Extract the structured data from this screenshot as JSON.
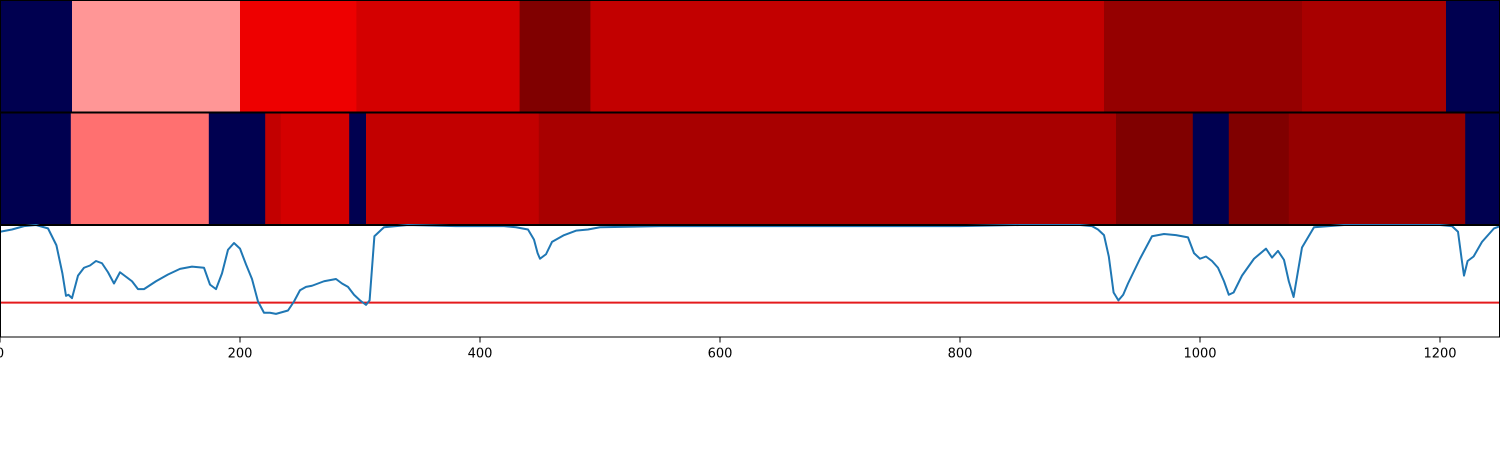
{
  "chart_data": {
    "type": "heatmap",
    "title": "",
    "xlabel": "",
    "ylabel": "",
    "xlim": [
      0,
      1250
    ],
    "grid": false,
    "x_ticks": [
      "0",
      "200",
      "400",
      "600",
      "800",
      "1000",
      "1200"
    ],
    "band_colors": {
      "background": "#000050",
      "palest": "#ff9696",
      "pale": "#ff7070",
      "bright": "#ee0000",
      "red": "#d40000",
      "mid_red": "#c20000",
      "deep_red": "#a80000",
      "darker_red": "#950000",
      "darkest_red": "#800000"
    },
    "rows": [
      {
        "segments": [
          {
            "start": 0,
            "end": 60,
            "color": "#000050"
          },
          {
            "start": 60,
            "end": 200,
            "color": "#ff9696"
          },
          {
            "start": 200,
            "end": 297,
            "color": "#ee0000"
          },
          {
            "start": 297,
            "end": 433,
            "color": "#d40000"
          },
          {
            "start": 433,
            "end": 492,
            "color": "#800000"
          },
          {
            "start": 492,
            "end": 920,
            "color": "#c20000"
          },
          {
            "start": 920,
            "end": 1085,
            "color": "#950000"
          },
          {
            "start": 1085,
            "end": 1205,
            "color": "#a80000"
          },
          {
            "start": 1205,
            "end": 1250,
            "color": "#000050"
          }
        ]
      },
      {
        "segments": [
          {
            "start": 0,
            "end": 59,
            "color": "#000050"
          },
          {
            "start": 59,
            "end": 174,
            "color": "#ff7070"
          },
          {
            "start": 174,
            "end": 221,
            "color": "#000050"
          },
          {
            "start": 221,
            "end": 234,
            "color": "#c20000"
          },
          {
            "start": 234,
            "end": 291,
            "color": "#d40000"
          },
          {
            "start": 291,
            "end": 305,
            "color": "#000050"
          },
          {
            "start": 305,
            "end": 449,
            "color": "#c20000"
          },
          {
            "start": 449,
            "end": 930,
            "color": "#a80000"
          },
          {
            "start": 930,
            "end": 994,
            "color": "#800000"
          },
          {
            "start": 994,
            "end": 1024,
            "color": "#000050"
          },
          {
            "start": 1024,
            "end": 1074,
            "color": "#800000"
          },
          {
            "start": 1074,
            "end": 1221,
            "color": "#950000"
          },
          {
            "start": 1221,
            "end": 1250,
            "color": "#000050"
          }
        ]
      }
    ],
    "line": {
      "color": "#1f77b4",
      "ylim": [
        0,
        1
      ],
      "x": [
        0,
        10,
        20,
        30,
        40,
        47,
        52,
        55,
        57,
        60,
        65,
        70,
        75,
        80,
        85,
        90,
        95,
        100,
        105,
        110,
        115,
        120,
        130,
        140,
        150,
        160,
        170,
        175,
        180,
        185,
        190,
        195,
        200,
        205,
        210,
        215,
        220,
        225,
        230,
        240,
        245,
        250,
        255,
        260,
        270,
        280,
        285,
        290,
        295,
        300,
        305,
        308,
        312,
        320,
        340,
        380,
        420,
        430,
        440,
        445,
        448,
        450,
        455,
        460,
        470,
        480,
        490,
        500,
        550,
        600,
        700,
        800,
        850,
        900,
        910,
        915,
        920,
        924,
        928,
        932,
        936,
        940,
        950,
        960,
        970,
        980,
        990,
        995,
        1000,
        1005,
        1010,
        1015,
        1020,
        1024,
        1028,
        1035,
        1045,
        1055,
        1060,
        1065,
        1070,
        1074,
        1078,
        1085,
        1095,
        1120,
        1160,
        1200,
        1210,
        1215,
        1218,
        1220,
        1223,
        1228,
        1235,
        1245,
        1250
      ],
      "y": [
        0.94,
        0.96,
        0.99,
        1.0,
        0.97,
        0.82,
        0.57,
        0.37,
        0.38,
        0.35,
        0.55,
        0.62,
        0.64,
        0.68,
        0.66,
        0.58,
        0.48,
        0.58,
        0.54,
        0.5,
        0.43,
        0.43,
        0.5,
        0.56,
        0.61,
        0.63,
        0.62,
        0.47,
        0.43,
        0.57,
        0.78,
        0.84,
        0.79,
        0.65,
        0.52,
        0.32,
        0.22,
        0.22,
        0.21,
        0.24,
        0.32,
        0.42,
        0.45,
        0.46,
        0.5,
        0.52,
        0.48,
        0.45,
        0.38,
        0.33,
        0.29,
        0.33,
        0.9,
        0.98,
        1.0,
        0.99,
        0.99,
        0.98,
        0.96,
        0.87,
        0.75,
        0.7,
        0.74,
        0.85,
        0.91,
        0.95,
        0.96,
        0.98,
        0.99,
        0.99,
        0.99,
        0.99,
        1.0,
        1.0,
        0.99,
        0.96,
        0.91,
        0.72,
        0.4,
        0.33,
        0.38,
        0.48,
        0.7,
        0.9,
        0.92,
        0.91,
        0.89,
        0.75,
        0.7,
        0.72,
        0.68,
        0.62,
        0.5,
        0.38,
        0.4,
        0.55,
        0.7,
        0.79,
        0.71,
        0.77,
        0.69,
        0.5,
        0.36,
        0.8,
        0.98,
        1.0,
        1.0,
        1.0,
        0.99,
        0.94,
        0.7,
        0.55,
        0.68,
        0.72,
        0.85,
        0.97,
        0.99
      ]
    },
    "threshold": {
      "y": 0.31,
      "color": "#e41a1c"
    }
  }
}
